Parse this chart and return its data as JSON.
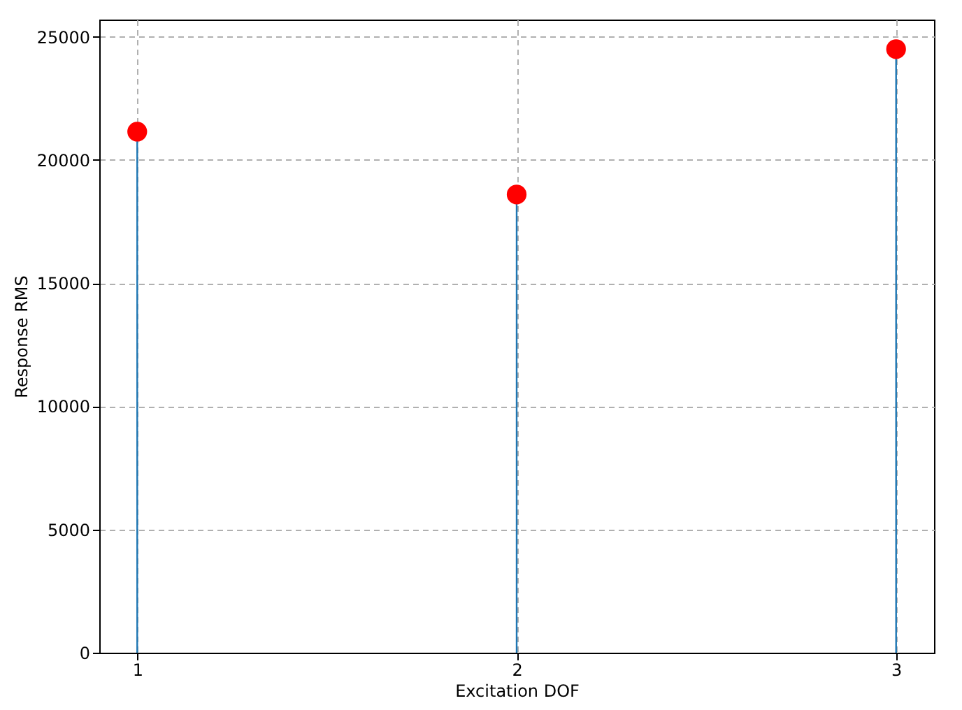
{
  "chart_data": {
    "type": "lollipop",
    "xlabel": "Excitation DOF",
    "ylabel": "Response RMS",
    "x": [
      1,
      2,
      3
    ],
    "values": [
      21150,
      18600,
      24500
    ],
    "color": "#ff0000",
    "xlim": [
      0.9,
      3.1
    ],
    "xticks": [
      1,
      2,
      3
    ],
    "ylim": [
      0,
      25700
    ],
    "yticks": [
      0,
      5000,
      10000,
      15000,
      20000,
      25000
    ],
    "grid": true,
    "marker": "circle"
  }
}
